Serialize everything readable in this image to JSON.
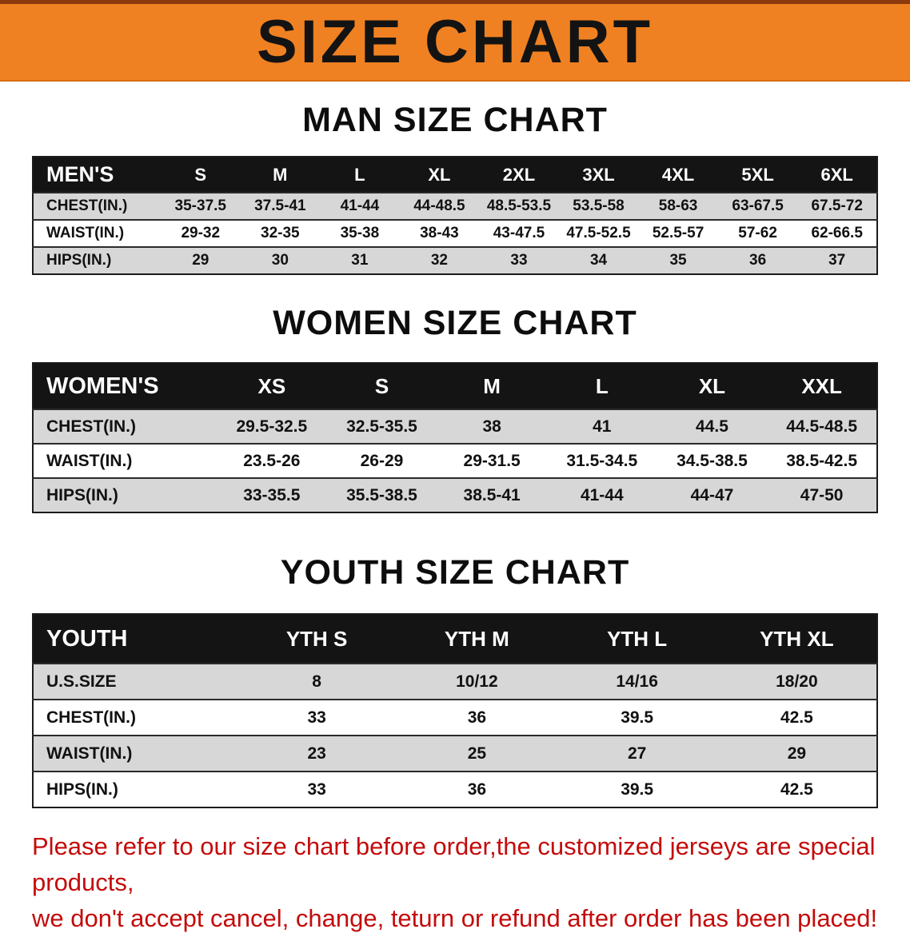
{
  "banner": {
    "title": "SIZE CHART"
  },
  "colors": {
    "banner_bg": "#f08122",
    "table_header_bg": "#141414",
    "row_alt_bg": "#d7d7d7",
    "disclaimer_text": "#c40b0b"
  },
  "sections": [
    {
      "heading": "MAN SIZE CHART",
      "table": {
        "header": [
          "MEN'S",
          "S",
          "M",
          "L",
          "XL",
          "2XL",
          "3XL",
          "4XL",
          "5XL",
          "6XL"
        ],
        "rows": [
          [
            "CHEST(IN.)",
            "35-37.5",
            "37.5-41",
            "41-44",
            "44-48.5",
            "48.5-53.5",
            "53.5-58",
            "58-63",
            "63-67.5",
            "67.5-72"
          ],
          [
            "WAIST(IN.)",
            "29-32",
            "32-35",
            "35-38",
            "38-43",
            "43-47.5",
            "47.5-52.5",
            "52.5-57",
            "57-62",
            "62-66.5"
          ],
          [
            "HIPS(IN.)",
            "29",
            "30",
            "31",
            "32",
            "33",
            "34",
            "35",
            "36",
            "37"
          ]
        ]
      }
    },
    {
      "heading": "WOMEN SIZE CHART",
      "table": {
        "header": [
          "WOMEN'S",
          "XS",
          "S",
          "M",
          "L",
          "XL",
          "XXL"
        ],
        "rows": [
          [
            "CHEST(IN.)",
            "29.5-32.5",
            "32.5-35.5",
            "38",
            "41",
            "44.5",
            "44.5-48.5"
          ],
          [
            "WAIST(IN.)",
            "23.5-26",
            "26-29",
            "29-31.5",
            "31.5-34.5",
            "34.5-38.5",
            "38.5-42.5"
          ],
          [
            "HIPS(IN.)",
            "33-35.5",
            "35.5-38.5",
            "38.5-41",
            "41-44",
            "44-47",
            "47-50"
          ]
        ]
      }
    },
    {
      "heading": "YOUTH SIZE CHART",
      "table": {
        "header": [
          "YOUTH",
          "YTH S",
          "YTH M",
          "YTH L",
          "YTH XL"
        ],
        "rows": [
          [
            "U.S.SIZE",
            "8",
            "10/12",
            "14/16",
            "18/20"
          ],
          [
            "CHEST(IN.)",
            "33",
            "36",
            "39.5",
            "42.5"
          ],
          [
            "WAIST(IN.)",
            "23",
            "25",
            "27",
            "29"
          ],
          [
            "HIPS(IN.)",
            "33",
            "36",
            "39.5",
            "42.5"
          ]
        ]
      }
    }
  ],
  "footer": {
    "line1": "Please refer to our size chart before order,the customized jerseys are special products,",
    "line2": "we don't accept cancel, change, teturn or refund after order has been placed!"
  }
}
